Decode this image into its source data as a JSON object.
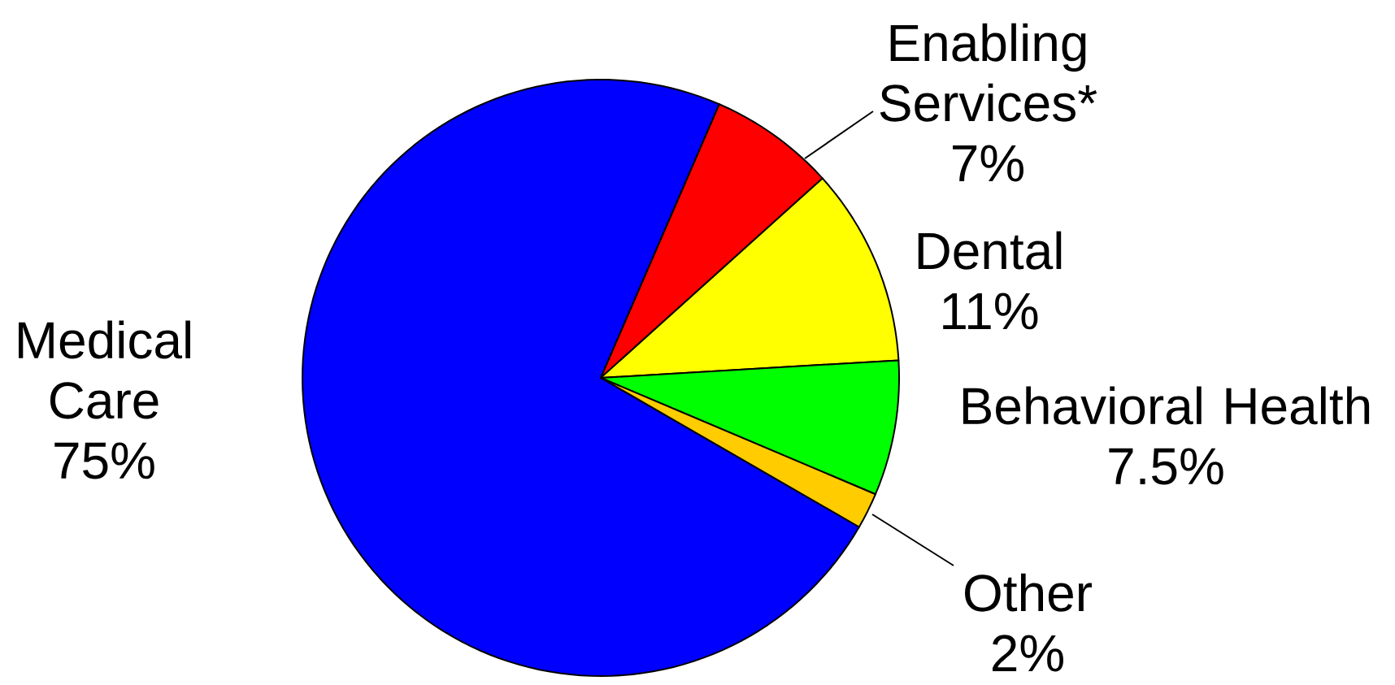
{
  "chart_data": {
    "type": "pie",
    "categories": [
      "Medical Care",
      "Enabling Services*",
      "Dental",
      "Behavioral Health",
      "Other"
    ],
    "values": [
      75,
      7,
      11,
      7.5,
      2
    ],
    "value_labels": [
      "75%",
      "7%",
      "11%",
      "7.5%",
      "2%"
    ],
    "colors": [
      "#0000ff",
      "#ff0000",
      "#ffff00",
      "#00ff00",
      "#ffcc00"
    ]
  }
}
